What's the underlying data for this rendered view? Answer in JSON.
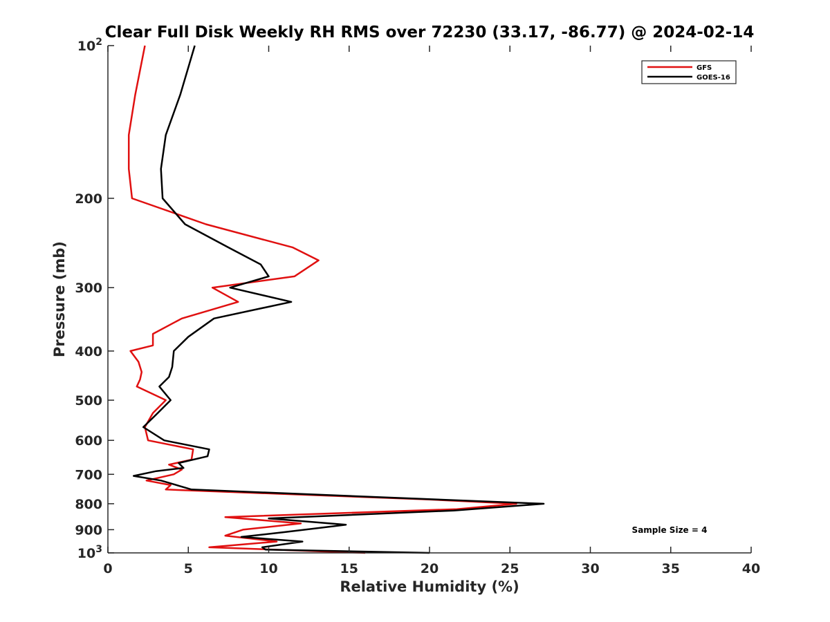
{
  "chart_data": {
    "type": "line",
    "title": "Clear Full Disk Weekly RH RMS over 72230 (33.17, -86.77) @ 2024-02-14",
    "xlabel": "Relative Humidity (%)",
    "ylabel": "Pressure (mb)",
    "xlim": [
      0,
      40
    ],
    "ylim": [
      100,
      1000
    ],
    "yscale": "log",
    "yreversed": true,
    "grid": false,
    "legend_location": "top-right",
    "x_ticks": [
      0,
      5,
      10,
      15,
      20,
      25,
      30,
      35,
      40
    ],
    "x_tick_labels": [
      "0",
      "5",
      "10",
      "15",
      "20",
      "25",
      "30",
      "35",
      "40"
    ],
    "y_ticks": [
      100,
      200,
      300,
      400,
      500,
      600,
      700,
      800,
      900,
      1000
    ],
    "y_tick_labels": [
      {
        "base": "10",
        "exp": "2"
      },
      {
        "text": "200"
      },
      {
        "text": "300"
      },
      {
        "text": "400"
      },
      {
        "text": "500"
      },
      {
        "text": "600"
      },
      {
        "text": "700"
      },
      {
        "text": "800"
      },
      {
        "text": "900"
      },
      {
        "base": "10",
        "exp": "3"
      }
    ],
    "annotation": "Sample Size = 4",
    "series": [
      {
        "name": "GFS",
        "color": "#e01010",
        "pressure": [
          100,
          125,
          150,
          175,
          200,
          225,
          250,
          265,
          285,
          300,
          320,
          345,
          370,
          390,
          400,
          420,
          440,
          455,
          470,
          500,
          530,
          565,
          600,
          625,
          655,
          670,
          685,
          700,
          720,
          735,
          750,
          785,
          800,
          820,
          850,
          875,
          900,
          925,
          950,
          975,
          1000
        ],
        "rh": [
          2.3,
          1.7,
          1.3,
          1.3,
          1.5,
          6.1,
          11.5,
          13.1,
          11.6,
          6.5,
          8.1,
          4.6,
          2.8,
          2.8,
          1.4,
          1.9,
          2.1,
          2.0,
          1.8,
          3.6,
          2.8,
          2.3,
          2.5,
          5.3,
          5.2,
          3.8,
          4.6,
          4.1,
          2.4,
          3.9,
          3.6,
          20.0,
          25.4,
          21.7,
          7.3,
          12.0,
          8.4,
          7.3,
          10.5,
          6.3,
          16.0
        ]
      },
      {
        "name": "GOES-16",
        "color": "#000000",
        "pressure": [
          100,
          125,
          150,
          175,
          200,
          225,
          250,
          270,
          285,
          300,
          320,
          345,
          375,
          400,
          430,
          450,
          470,
          500,
          530,
          565,
          600,
          625,
          645,
          665,
          680,
          690,
          705,
          720,
          750,
          785,
          800,
          825,
          855,
          880,
          910,
          930,
          950,
          975,
          985,
          1000
        ],
        "rh": [
          5.4,
          4.5,
          3.6,
          3.3,
          3.4,
          4.8,
          7.5,
          9.5,
          10.0,
          7.6,
          11.4,
          6.6,
          5.0,
          4.1,
          4.0,
          3.8,
          3.2,
          3.9,
          3.1,
          2.2,
          3.5,
          6.3,
          6.2,
          4.4,
          4.7,
          3.0,
          1.6,
          3.3,
          5.2,
          20.5,
          27.1,
          21.5,
          10.0,
          14.8,
          11.0,
          8.3,
          12.1,
          9.6,
          9.8,
          20.0
        ]
      }
    ]
  }
}
